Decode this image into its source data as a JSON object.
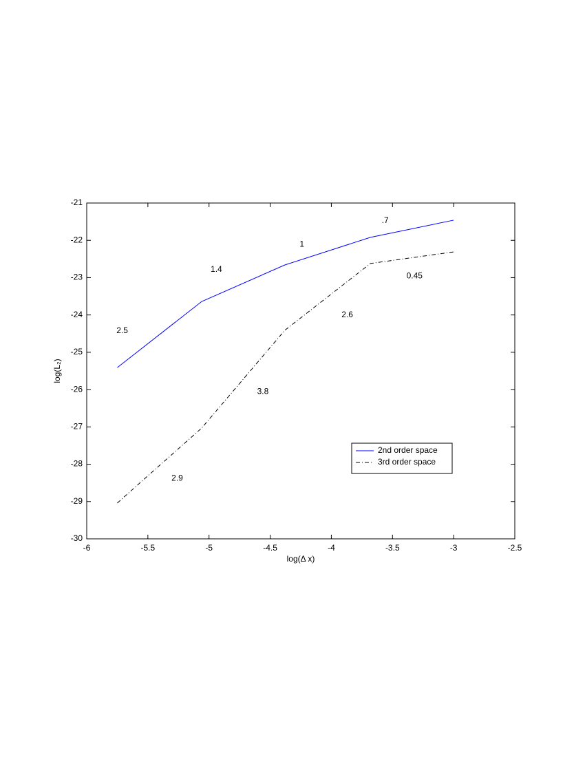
{
  "chart_data": {
    "type": "line",
    "xlabel": "log(Δ x)",
    "ylabel": "log(L₂)",
    "xlim": [
      -6,
      -2.5
    ],
    "ylim": [
      -30,
      -21
    ],
    "xticks": [
      -6,
      -5.5,
      -5,
      -4.5,
      -4,
      -3.5,
      -3,
      -2.5
    ],
    "yticks": [
      -30,
      -29,
      -28,
      -27,
      -26,
      -25,
      -24,
      -23,
      -22,
      -21
    ],
    "x": [
      -5.75,
      -5.06,
      -4.38,
      -3.68,
      -3.0
    ],
    "series": [
      {
        "name": "2nd order space",
        "color": "#0000ff",
        "linestyle": "solid",
        "values": [
          -25.41,
          -23.64,
          -22.66,
          -21.92,
          -21.46
        ]
      },
      {
        "name": "3rd order space",
        "color": "#000000",
        "linestyle": "dashdot",
        "values": [
          -29.04,
          -27.03,
          -24.41,
          -22.62,
          -22.31
        ]
      }
    ],
    "annotations": [
      {
        "text": "2.5",
        "x": -5.71,
        "y": -24.43
      },
      {
        "text": "1.4",
        "x": -4.94,
        "y": -22.79
      },
      {
        "text": "1",
        "x": -4.24,
        "y": -22.11
      },
      {
        "text": ".7",
        "x": -3.56,
        "y": -21.48
      },
      {
        "text": "0.45",
        "x": -3.32,
        "y": -22.96
      },
      {
        "text": "2.6",
        "x": -3.87,
        "y": -24.0
      },
      {
        "text": "3.8",
        "x": -4.56,
        "y": -26.06
      },
      {
        "text": "2.9",
        "x": -5.26,
        "y": -28.38
      }
    ],
    "legend": "lower right"
  }
}
